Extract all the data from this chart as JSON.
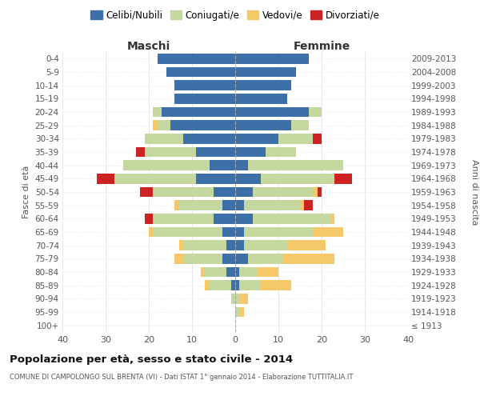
{
  "age_groups": [
    "100+",
    "95-99",
    "90-94",
    "85-89",
    "80-84",
    "75-79",
    "70-74",
    "65-69",
    "60-64",
    "55-59",
    "50-54",
    "45-49",
    "40-44",
    "35-39",
    "30-34",
    "25-29",
    "20-24",
    "15-19",
    "10-14",
    "5-9",
    "0-4"
  ],
  "birth_years": [
    "≤ 1913",
    "1914-1918",
    "1919-1923",
    "1924-1928",
    "1929-1933",
    "1934-1938",
    "1939-1943",
    "1944-1948",
    "1949-1953",
    "1954-1958",
    "1959-1963",
    "1964-1968",
    "1969-1973",
    "1974-1978",
    "1979-1983",
    "1984-1988",
    "1989-1993",
    "1994-1998",
    "1999-2003",
    "2004-2008",
    "2009-2013"
  ],
  "male": {
    "celibi": [
      0,
      0,
      0,
      1,
      2,
      3,
      2,
      3,
      5,
      3,
      5,
      9,
      6,
      9,
      12,
      15,
      17,
      14,
      14,
      16,
      18
    ],
    "coniugati": [
      0,
      0,
      1,
      5,
      5,
      9,
      10,
      16,
      14,
      10,
      14,
      19,
      20,
      12,
      9,
      3,
      2,
      0,
      0,
      0,
      0
    ],
    "vedovi": [
      0,
      0,
      0,
      1,
      1,
      2,
      1,
      1,
      0,
      1,
      0,
      0,
      0,
      0,
      0,
      1,
      0,
      0,
      0,
      0,
      0
    ],
    "divorziati": [
      0,
      0,
      0,
      0,
      0,
      0,
      0,
      0,
      2,
      0,
      3,
      4,
      0,
      2,
      0,
      0,
      0,
      0,
      0,
      0,
      0
    ]
  },
  "female": {
    "nubili": [
      0,
      0,
      0,
      1,
      1,
      3,
      2,
      2,
      4,
      2,
      4,
      6,
      3,
      7,
      10,
      13,
      17,
      12,
      13,
      14,
      17
    ],
    "coniugate": [
      0,
      1,
      1,
      5,
      4,
      8,
      10,
      16,
      18,
      13,
      14,
      17,
      22,
      7,
      8,
      4,
      3,
      0,
      0,
      0,
      0
    ],
    "vedove": [
      0,
      1,
      2,
      7,
      5,
      12,
      9,
      7,
      1,
      1,
      1,
      0,
      0,
      0,
      0,
      0,
      0,
      0,
      0,
      0,
      0
    ],
    "divorziate": [
      0,
      0,
      0,
      0,
      0,
      0,
      0,
      0,
      0,
      2,
      1,
      4,
      0,
      0,
      2,
      0,
      0,
      0,
      0,
      0,
      0
    ]
  },
  "colors": {
    "celibi": "#3d6fa8",
    "coniugati": "#c5d8a0",
    "vedovi": "#f5c96a",
    "divorziati": "#cc2222"
  },
  "title": "Popolazione per età, sesso e stato civile - 2014",
  "subtitle": "COMUNE DI CAMPOLONGO SUL BRENTA (VI) - Dati ISTAT 1° gennaio 2014 - Elaborazione TUTTITALIA.IT",
  "xlabel_left": "Maschi",
  "xlabel_right": "Femmine",
  "ylabel_left": "Fasce di età",
  "ylabel_right": "Anni di nascita",
  "xlim": 40,
  "legend_labels": [
    "Celibi/Nubili",
    "Coniugati/e",
    "Vedovi/e",
    "Divorziati/e"
  ],
  "background_color": "#ffffff"
}
